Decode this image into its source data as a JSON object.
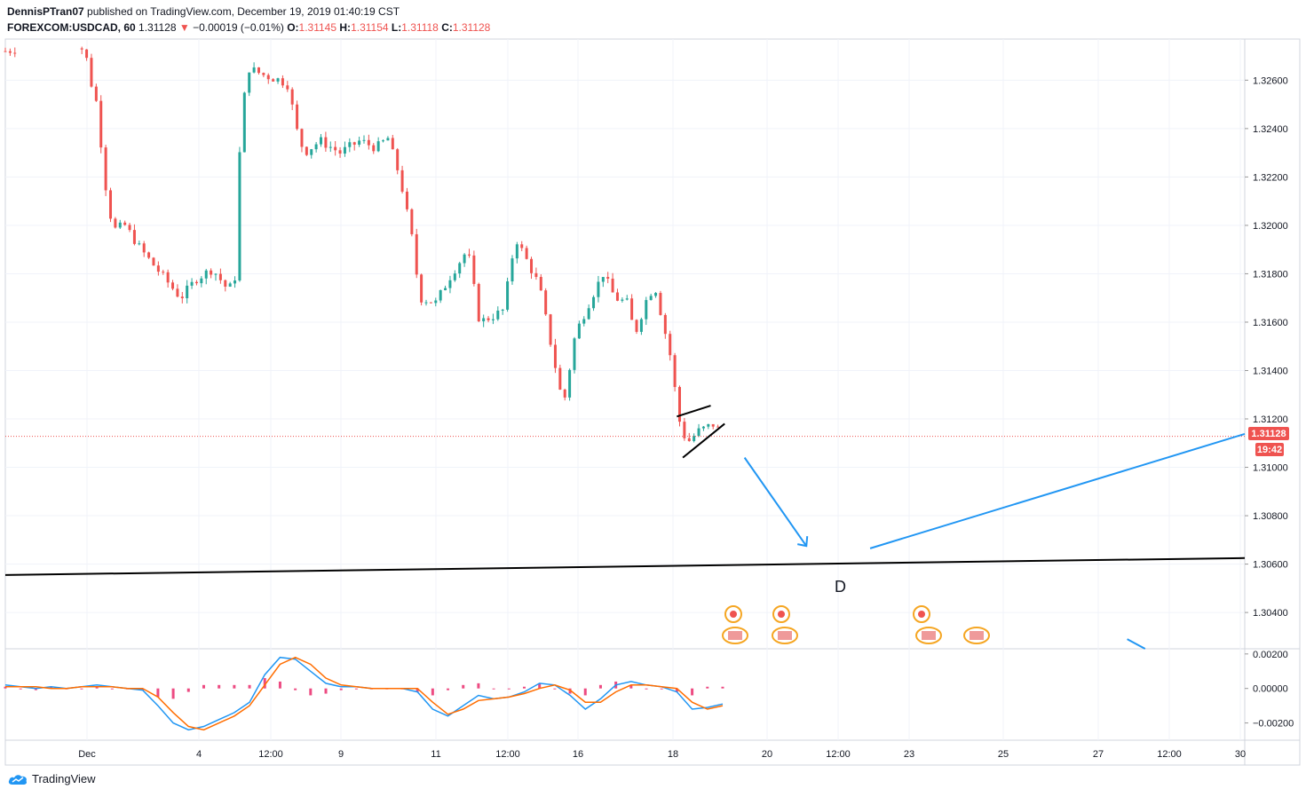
{
  "header": {
    "author": "DennisPTran07",
    "published_text": "published on TradingView.com, December 19, 2019 01:40:19 CST",
    "symbol": "FOREXCOM:USDCAD, 60",
    "last": "1.31128",
    "arrow": "▼",
    "change": "−0.00019 (−0.01%)",
    "o_label": "O:",
    "o_value": "1.31145",
    "h_label": "H:",
    "h_value": "1.31154",
    "l_label": "L:",
    "l_value": "1.31118",
    "c_label": "C:",
    "c_value": "1.31128"
  },
  "footer": {
    "brand": "TradingView",
    "logo_icon": "tradingview-cloud-icon"
  },
  "price_badge": {
    "price": "1.31128",
    "countdown": "19:42",
    "color": "#ef5350"
  },
  "annotation_letter": "D",
  "colors": {
    "up": "#26a69a",
    "down": "#ef5350",
    "macd": "#2196f3",
    "signal": "#ff6d00",
    "hist": "#e91e63",
    "trendline": "#2196f3"
  },
  "chart_data": [
    {
      "type": "candlestick",
      "symbol": "FOREXCOM:USDCAD",
      "timeframe": "60",
      "y_ticks": [
        "1.32600",
        "1.32400",
        "1.32200",
        "1.32000",
        "1.31800",
        "1.31600",
        "1.31400",
        "1.31200",
        "1.31000",
        "1.30800",
        "1.30600",
        "1.30400"
      ],
      "ylim": [
        1.3025,
        1.3277
      ],
      "x_ticks": [
        "Dec",
        "4",
        "12:00",
        "9",
        "11",
        "12:00",
        "16",
        "18",
        "20",
        "12:00",
        "23",
        "25",
        "27",
        "12:00",
        "30"
      ],
      "current_price": 1.31128,
      "close_path": [
        {
          "x": 0.0,
          "y": 1.3272
        },
        {
          "x": 0.007,
          "y": 1.3274
        },
        {
          "x": 0.02,
          "y": 1.3273
        },
        {
          "x": 0.021,
          "y": 1.3262
        },
        {
          "x": 0.023,
          "y": 1.325
        },
        {
          "x": 0.025,
          "y": 1.3218
        },
        {
          "x": 0.027,
          "y": 1.3198
        },
        {
          "x": 0.03,
          "y": 1.32
        },
        {
          "x": 0.034,
          "y": 1.319
        },
        {
          "x": 0.039,
          "y": 1.318
        },
        {
          "x": 0.044,
          "y": 1.317
        },
        {
          "x": 0.048,
          "y": 1.3178
        },
        {
          "x": 0.052,
          "y": 1.3182
        },
        {
          "x": 0.056,
          "y": 1.3173
        },
        {
          "x": 0.058,
          "y": 1.318
        },
        {
          "x": 0.059,
          "y": 1.3242
        },
        {
          "x": 0.061,
          "y": 1.3265
        },
        {
          "x": 0.065,
          "y": 1.3262
        },
        {
          "x": 0.069,
          "y": 1.326
        },
        {
          "x": 0.071,
          "y": 1.3258
        },
        {
          "x": 0.073,
          "y": 1.324
        },
        {
          "x": 0.075,
          "y": 1.323
        },
        {
          "x": 0.079,
          "y": 1.3235
        },
        {
          "x": 0.084,
          "y": 1.323
        },
        {
          "x": 0.089,
          "y": 1.3235
        },
        {
          "x": 0.093,
          "y": 1.3232
        },
        {
          "x": 0.096,
          "y": 1.3236
        },
        {
          "x": 0.099,
          "y": 1.322
        },
        {
          "x": 0.102,
          "y": 1.3195
        },
        {
          "x": 0.104,
          "y": 1.317
        },
        {
          "x": 0.108,
          "y": 1.3168
        },
        {
          "x": 0.112,
          "y": 1.318
        },
        {
          "x": 0.116,
          "y": 1.319
        },
        {
          "x": 0.119,
          "y": 1.316
        },
        {
          "x": 0.123,
          "y": 1.3163
        },
        {
          "x": 0.125,
          "y": 1.3165
        },
        {
          "x": 0.128,
          "y": 1.3195
        },
        {
          "x": 0.131,
          "y": 1.3185
        },
        {
          "x": 0.134,
          "y": 1.3175
        },
        {
          "x": 0.137,
          "y": 1.315
        },
        {
          "x": 0.14,
          "y": 1.3125
        },
        {
          "x": 0.143,
          "y": 1.3155
        },
        {
          "x": 0.147,
          "y": 1.317
        },
        {
          "x": 0.15,
          "y": 1.318
        },
        {
          "x": 0.153,
          "y": 1.317
        },
        {
          "x": 0.156,
          "y": 1.3168
        },
        {
          "x": 0.158,
          "y": 1.3155
        },
        {
          "x": 0.161,
          "y": 1.317
        },
        {
          "x": 0.163,
          "y": 1.3175
        },
        {
          "x": 0.165,
          "y": 1.316
        },
        {
          "x": 0.167,
          "y": 1.3145
        },
        {
          "x": 0.169,
          "y": 1.312
        },
        {
          "x": 0.171,
          "y": 1.311
        },
        {
          "x": 0.174,
          "y": 1.3115
        },
        {
          "x": 0.178,
          "y": 1.3118
        },
        {
          "x": 0.18,
          "y": 1.31128
        }
      ],
      "drawings": {
        "pennant_upper": [
          [
            0.1685,
            1.3121
          ],
          [
            0.177,
            1.31255
          ]
        ],
        "pennant_lower": [
          [
            0.17,
            1.3104
          ],
          [
            0.1805,
            1.3118
          ]
        ],
        "arrow_down": [
          [
            0.1855,
            1.3104
          ],
          [
            0.201,
            1.30675
          ]
        ],
        "arrow_up": [
          [
            0.217,
            1.30665
          ],
          [
            0.311,
            1.31138
          ]
        ],
        "support_line": [
          [
            0.0,
            1.30555
          ],
          [
            0.311,
            1.30625
          ]
        ],
        "arrow_partial": [
          [
            0.2815,
            1.3029
          ],
          [
            0.286,
            1.3025
          ]
        ]
      }
    },
    {
      "type": "line",
      "indicator": "MACD",
      "y_ticks": [
        "0.00200",
        "0.00000",
        "−0.00200"
      ],
      "ylim": [
        -0.003,
        0.0023
      ],
      "series": [
        {
          "values": [
            0.0002,
            0.0001,
            0.0,
            0.0001,
            0.0,
            0.0001,
            0.0002,
            0.0001,
            0.0,
            -0.0001,
            -0.001,
            -0.002,
            -0.0024,
            -0.0022,
            -0.0018,
            -0.0014,
            -0.0008,
            0.0008,
            0.0018,
            0.0017,
            0.001,
            0.0003,
            0.0001,
            0.0001,
            0.0,
            0.0,
            0.0,
            -0.0002,
            -0.0012,
            -0.0016,
            -0.001,
            -0.0004,
            -0.0006,
            -0.0005,
            -0.0002,
            0.0003,
            0.0002,
            -0.0004,
            -0.0012,
            -0.0006,
            0.0002,
            0.0004,
            0.0002,
            0.0001,
            -0.0002,
            -0.0012,
            -0.0011,
            -0.0009
          ]
        },
        {
          "values": [
            0.0001,
            0.0001,
            0.0001,
            0.0,
            0.0,
            0.0001,
            0.0001,
            0.0001,
            0.0,
            0.0,
            -0.0005,
            -0.0014,
            -0.0022,
            -0.0024,
            -0.002,
            -0.0016,
            -0.001,
            0.0002,
            0.0014,
            0.0018,
            0.0014,
            0.0006,
            0.0002,
            0.0001,
            0.0,
            0.0,
            0.0,
            0.0,
            -0.0008,
            -0.0015,
            -0.0012,
            -0.0007,
            -0.0006,
            -0.0005,
            -0.0003,
            0.0,
            0.0002,
            -0.0001,
            -0.0008,
            -0.0008,
            -0.0002,
            0.0002,
            0.0002,
            0.0001,
            0.0,
            -0.0008,
            -0.0012,
            -0.001
          ]
        }
      ]
    }
  ]
}
